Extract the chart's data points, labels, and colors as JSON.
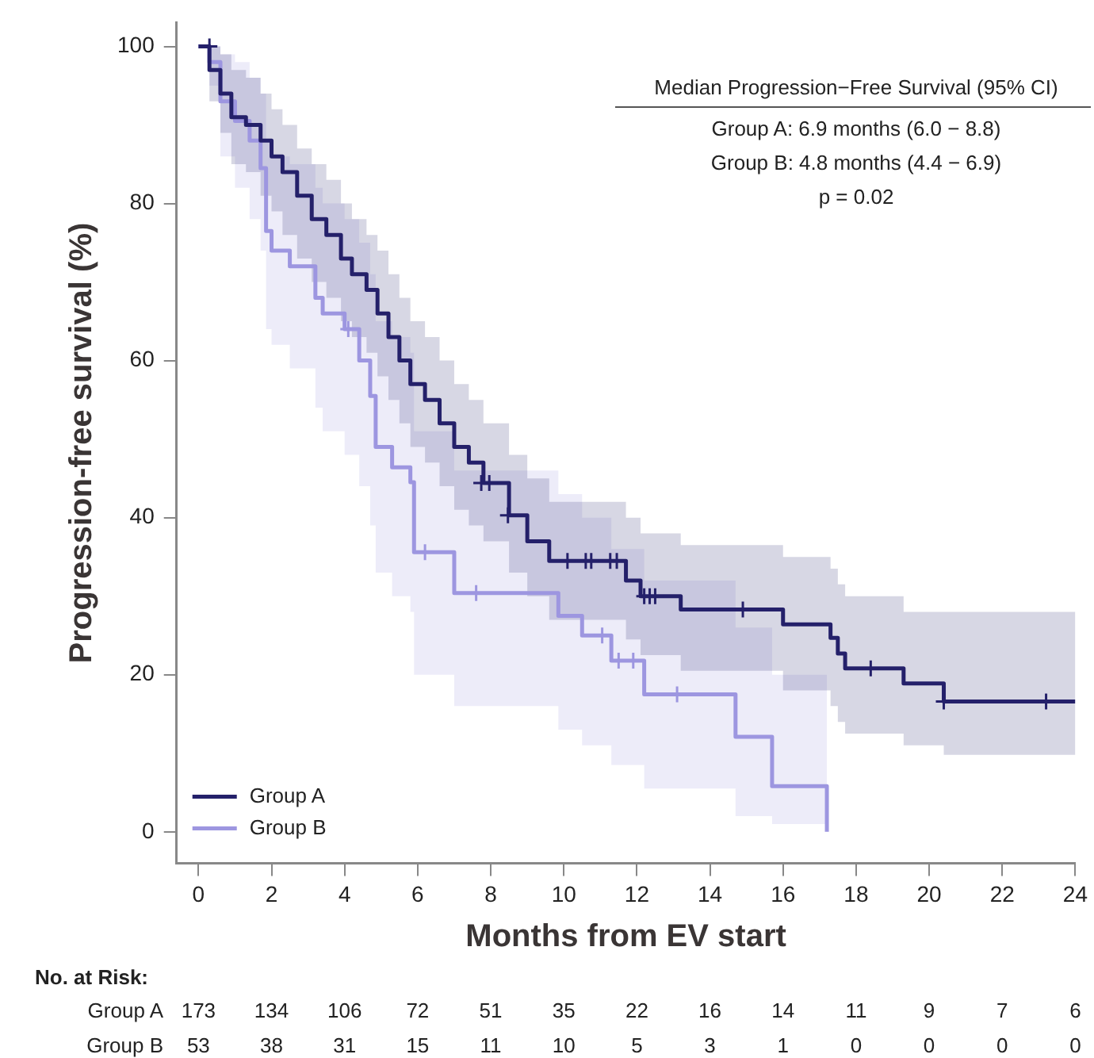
{
  "chart_data": {
    "type": "step",
    "xlabel": "Months from EV start",
    "ylabel": "Progression-free survival (%)",
    "xlim": [
      -0.6,
      24
    ],
    "xticks": [
      0,
      2,
      4,
      6,
      8,
      10,
      12,
      14,
      16,
      18,
      20,
      22,
      24
    ],
    "ylim": [
      -4,
      103
    ],
    "yticks": [
      0,
      20,
      40,
      60,
      80,
      100
    ],
    "grid": false,
    "legend": "bottom left",
    "series": [
      {
        "name": "Group A",
        "color": "#24206a",
        "x": [
          0,
          0.3,
          0.6,
          0.9,
          1.3,
          1.7,
          2.0,
          2.3,
          2.7,
          3.1,
          3.5,
          3.9,
          4.2,
          4.6,
          4.9,
          5.2,
          5.5,
          5.8,
          6.2,
          6.6,
          7.0,
          7.4,
          7.8,
          8.5,
          9.0,
          9.6,
          11.7,
          12.1,
          13.2,
          16.0,
          17.3,
          17.5,
          17.7,
          19.3,
          20.4,
          24
        ],
        "values": [
          100,
          97,
          94,
          91,
          90,
          88,
          86,
          84,
          81,
          78,
          76,
          73,
          71,
          69,
          66,
          63,
          60,
          57,
          55,
          52,
          49,
          47,
          44.4,
          40.3,
          37,
          34.5,
          32,
          30,
          28.3,
          26.4,
          24.7,
          22.7,
          20.8,
          18.9,
          16.6,
          16.6
        ],
        "lower": [
          100,
          93,
          89,
          85,
          84,
          81,
          79,
          76,
          73,
          70,
          68,
          65,
          63,
          61,
          58,
          55,
          52,
          49,
          47,
          44,
          41,
          39,
          37,
          33,
          30,
          27,
          24.5,
          22.5,
          20.5,
          18,
          16,
          14,
          12.5,
          11,
          9.8,
          9.8
        ],
        "upper": [
          100,
          100,
          99,
          97,
          96,
          94,
          92,
          90,
          87,
          85,
          83,
          80,
          78,
          76,
          74,
          71,
          68,
          65,
          63,
          60,
          57,
          55,
          52,
          48,
          45,
          42,
          40,
          38,
          36.5,
          35,
          33.5,
          31.5,
          30,
          28,
          28,
          28
        ]
      },
      {
        "name": "Group B",
        "color": "#9d96e0",
        "x": [
          0,
          0.3,
          0.6,
          1.0,
          1.4,
          1.7,
          1.85,
          2.0,
          2.5,
          3.2,
          3.4,
          4.0,
          4.4,
          4.7,
          4.85,
          5.3,
          5.8,
          5.9,
          7.0,
          9.85,
          10.5,
          11.3,
          12.2,
          14.7,
          15.7,
          17.2
        ],
        "values": [
          100,
          98,
          93,
          90.5,
          88,
          84.5,
          76.5,
          74,
          72,
          68,
          66,
          64,
          60,
          55.5,
          49,
          46.4,
          44.5,
          35.6,
          30.4,
          27.5,
          25,
          21.8,
          17.5,
          12.1,
          5.8,
          0
        ],
        "lower": [
          100,
          95,
          86,
          82,
          78,
          74,
          64,
          62,
          59,
          54,
          51,
          48,
          44,
          39,
          33,
          30,
          28,
          20,
          16,
          13,
          11,
          8.5,
          5.5,
          2,
          1,
          0
        ],
        "upper": [
          100,
          100,
          99,
          98,
          96,
          94,
          88,
          86,
          85,
          82,
          80,
          78,
          75,
          71,
          65,
          63,
          61,
          51,
          46,
          43,
          40,
          36,
          32,
          26,
          20,
          0
        ]
      },
      {
        "color": "#24206a",
        "type": "scatter",
        "marker": "cross",
        "x": [
          0.3,
          7.74,
          7.96,
          8.47,
          10.1,
          10.6,
          10.75,
          11.27,
          11.45,
          12.2,
          12.35,
          12.5,
          14.9,
          18.4,
          20.4,
          23.2
        ],
        "values": [
          100,
          44.4,
          44.4,
          40.3,
          34.5,
          34.5,
          34.5,
          34.5,
          34.5,
          30,
          30,
          30,
          28.3,
          20.8,
          16.6,
          16.6
        ]
      },
      {
        "color": "#9d96e0",
        "type": "scatter",
        "marker": "cross",
        "x": [
          4.1,
          6.2,
          7.6,
          11.05,
          11.5,
          11.9,
          13.1
        ],
        "values": [
          64,
          35.6,
          30.4,
          25,
          21.8,
          21.8,
          17.5
        ]
      }
    ],
    "annotations": [
      "Median Progression−Free Survival (95% CI)",
      "Group A: 6.9 months (6.0 − 8.8)",
      "Group B: 4.8 months (4.4 − 6.9)",
      "p = 0.02",
      "No. at Risk:",
      "Group A",
      "173",
      "134",
      "106",
      "72",
      "51",
      "35",
      "22",
      "16",
      "14",
      "11",
      "9",
      "7",
      "6",
      "Group B",
      "53",
      "38",
      "31",
      "15",
      "11",
      "10",
      "5",
      "3",
      "1",
      "0",
      "0",
      "0",
      "0"
    ]
  }
}
